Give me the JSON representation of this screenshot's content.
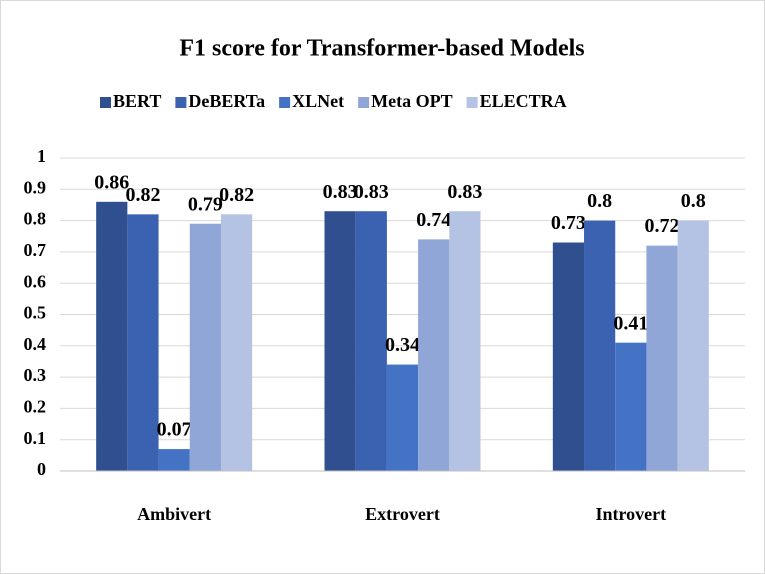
{
  "chart_data": {
    "type": "bar",
    "title": "F1 score for Transformer-based Models",
    "categories": [
      "Ambivert",
      "Extrovert",
      "Introvert"
    ],
    "series": [
      {
        "name": "BERT",
        "color": "#2f4f8f",
        "values": [
          0.86,
          0.83,
          0.73
        ]
      },
      {
        "name": "DeBERTa",
        "color": "#3a62b0",
        "values": [
          0.82,
          0.83,
          0.8
        ]
      },
      {
        "name": "XLNet",
        "color": "#4472c4",
        "values": [
          0.07,
          0.34,
          0.41
        ]
      },
      {
        "name": "Meta OPT",
        "color": "#8fa6d6",
        "values": [
          0.79,
          0.74,
          0.72
        ]
      },
      {
        "name": "ELECTRA",
        "color": "#b4c2e4",
        "values": [
          0.82,
          0.83,
          0.8
        ]
      }
    ],
    "ylim": [
      0,
      1
    ],
    "yticks": [
      0,
      0.1,
      0.2,
      0.3,
      0.4,
      0.5,
      0.6,
      0.7,
      0.8,
      0.9,
      1
    ],
    "grid": true,
    "legend": "top"
  }
}
